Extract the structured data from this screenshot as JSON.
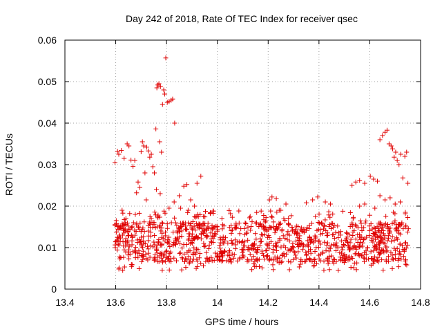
{
  "chart_data": {
    "type": "scatter",
    "title": "Day 242 of 2018, Rate Of TEC Index for receiver qsec",
    "xlabel": "GPS time / hours",
    "ylabel": "ROTI / TECUs",
    "xlim": [
      13.4,
      14.8
    ],
    "ylim": [
      0,
      0.06
    ],
    "xticks": [
      "13.4",
      "13.6",
      "13.8",
      "14",
      "14.2",
      "14.4",
      "14.6",
      "14.8"
    ],
    "yticks": [
      "0",
      "0.01",
      "0.02",
      "0.03",
      "0.04",
      "0.05",
      "0.06"
    ],
    "grid": true,
    "marker": "+",
    "color": "#e00000",
    "series": [
      {
        "name": "ROTI",
        "points": [
          [
            13.597,
            0.0305
          ],
          [
            13.602,
            0.0165
          ],
          [
            13.607,
            0.0332
          ],
          [
            13.612,
            0.0325
          ],
          [
            13.617,
            0.0148
          ],
          [
            13.622,
            0.0334
          ],
          [
            13.628,
            0.0183
          ],
          [
            13.633,
            0.0315
          ],
          [
            13.64,
            0.0156
          ],
          [
            13.645,
            0.035
          ],
          [
            13.652,
            0.0345
          ],
          [
            13.66,
            0.0311
          ],
          [
            13.668,
            0.0296
          ],
          [
            13.675,
            0.031
          ],
          [
            13.682,
            0.0232
          ],
          [
            13.688,
            0.0258
          ],
          [
            13.695,
            0.0245
          ],
          [
            13.7,
            0.0331
          ],
          [
            13.705,
            0.0355
          ],
          [
            13.71,
            0.0345
          ],
          [
            13.715,
            0.028
          ],
          [
            13.722,
            0.0342
          ],
          [
            13.728,
            0.0333
          ],
          [
            13.734,
            0.0318
          ],
          [
            13.74,
            0.0325
          ],
          [
            13.746,
            0.0295
          ],
          [
            13.752,
            0.028
          ],
          [
            13.758,
            0.0386
          ],
          [
            13.762,
            0.0485
          ],
          [
            13.766,
            0.0492
          ],
          [
            13.77,
            0.0495
          ],
          [
            13.773,
            0.0355
          ],
          [
            13.776,
            0.0488
          ],
          [
            13.78,
            0.033
          ],
          [
            13.784,
            0.0445
          ],
          [
            13.789,
            0.048
          ],
          [
            13.793,
            0.047
          ],
          [
            13.797,
            0.0557
          ],
          [
            13.803,
            0.045
          ],
          [
            13.81,
            0.0452
          ],
          [
            13.818,
            0.0455
          ],
          [
            13.824,
            0.0458
          ],
          [
            13.832,
            0.04
          ],
          [
            13.72,
            0.0215
          ],
          [
            13.735,
            0.0175
          ],
          [
            13.76,
            0.024
          ],
          [
            13.775,
            0.023
          ],
          [
            13.81,
            0.0195
          ],
          [
            13.83,
            0.021
          ],
          [
            13.85,
            0.0225
          ],
          [
            13.868,
            0.0248
          ],
          [
            13.88,
            0.0252
          ],
          [
            13.895,
            0.0215
          ],
          [
            13.91,
            0.02
          ],
          [
            13.92,
            0.0255
          ],
          [
            13.935,
            0.0272
          ],
          [
            13.625,
            0.019
          ],
          [
            13.64,
            0.017
          ],
          [
            13.655,
            0.0182
          ],
          [
            13.67,
            0.016
          ],
          [
            13.69,
            0.015
          ],
          [
            13.712,
            0.0162
          ],
          [
            13.74,
            0.017
          ],
          [
            13.765,
            0.0175
          ],
          [
            13.79,
            0.0188
          ],
          [
            13.855,
            0.0195
          ],
          [
            13.885,
            0.019
          ],
          [
            14.35,
            0.0208
          ],
          [
            14.375,
            0.0215
          ],
          [
            14.395,
            0.0222
          ],
          [
            14.425,
            0.021
          ],
          [
            14.445,
            0.0205
          ],
          [
            14.53,
            0.025
          ],
          [
            14.545,
            0.0258
          ],
          [
            14.56,
            0.0262
          ],
          [
            14.58,
            0.0255
          ],
          [
            14.602,
            0.0272
          ],
          [
            14.615,
            0.0265
          ],
          [
            14.63,
            0.026
          ],
          [
            14.64,
            0.036
          ],
          [
            14.65,
            0.037
          ],
          [
            14.66,
            0.0378
          ],
          [
            14.668,
            0.0383
          ],
          [
            14.676,
            0.035
          ],
          [
            14.684,
            0.0345
          ],
          [
            14.69,
            0.0338
          ],
          [
            14.696,
            0.0318
          ],
          [
            14.702,
            0.033
          ],
          [
            14.708,
            0.031
          ],
          [
            14.715,
            0.03
          ],
          [
            14.722,
            0.0325
          ],
          [
            14.73,
            0.0268
          ],
          [
            14.738,
            0.032
          ],
          [
            14.745,
            0.033
          ],
          [
            14.75,
            0.0255
          ],
          [
            14.64,
            0.0225
          ],
          [
            14.66,
            0.0215
          ],
          [
            14.68,
            0.022
          ],
          [
            14.7,
            0.0205
          ],
          [
            14.72,
            0.021
          ],
          [
            14.74,
            0.0185
          ],
          [
            14.62,
            0.0195
          ],
          [
            14.6,
            0.0178
          ],
          [
            14.58,
            0.0205
          ],
          [
            14.56,
            0.02
          ],
          [
            14.215,
            0.0222
          ],
          [
            14.232,
            0.0218
          ],
          [
            14.25,
            0.019
          ],
          [
            14.27,
            0.0205
          ],
          [
            14.205,
            0.0215
          ]
        ]
      }
    ]
  }
}
